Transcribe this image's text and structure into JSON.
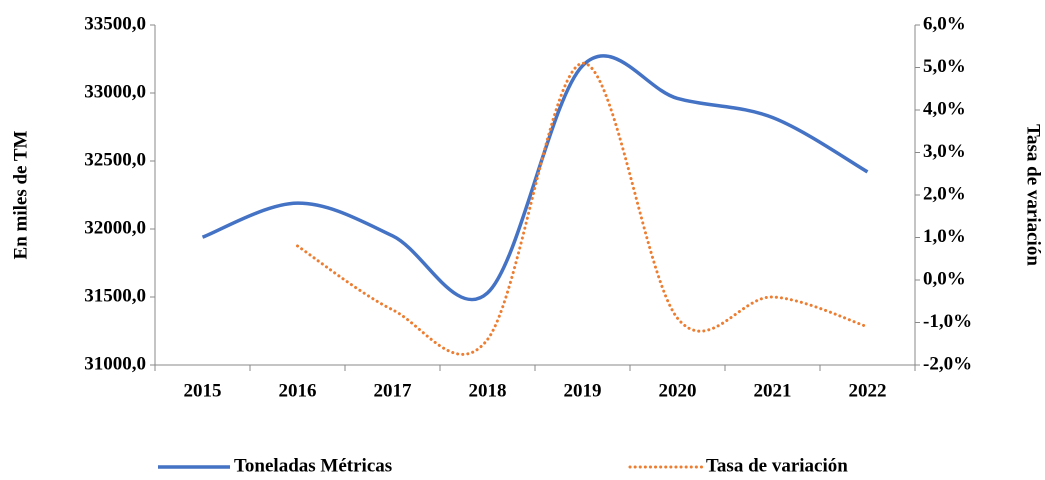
{
  "chart_data": {
    "type": "line",
    "categories": [
      "2015",
      "2016",
      "2017",
      "2018",
      "2019",
      "2020",
      "2021",
      "2022"
    ],
    "ylabel": "En miles de TM",
    "y2label": "Tasa de variación",
    "ylim": [
      31000,
      33500
    ],
    "yticks": [
      {
        "value": 31000,
        "label": "31000,0"
      },
      {
        "value": 31500,
        "label": "31500,0"
      },
      {
        "value": 32000,
        "label": "32000,0"
      },
      {
        "value": 32500,
        "label": "32500,0"
      },
      {
        "value": 33000,
        "label": "33000,0"
      },
      {
        "value": 33500,
        "label": "33500,0"
      }
    ],
    "y2lim": [
      -2,
      6
    ],
    "y2ticks": [
      {
        "value": -2,
        "label": "-2,0%"
      },
      {
        "value": -1,
        "label": "-1,0%"
      },
      {
        "value": 0,
        "label": "0,0%"
      },
      {
        "value": 1,
        "label": "1,0%"
      },
      {
        "value": 2,
        "label": "2,0%"
      },
      {
        "value": 3,
        "label": "3,0%"
      },
      {
        "value": 4,
        "label": "4,0%"
      },
      {
        "value": 5,
        "label": "5,0%"
      },
      {
        "value": 6,
        "label": "6,0%"
      }
    ],
    "legend": "bottom",
    "series": [
      {
        "name": "Toneladas Métricas",
        "color": "#4472c4",
        "dash": "solid",
        "values": [
          31940,
          32190,
          31950,
          31530,
          33200,
          32960,
          32820,
          32420
        ]
      },
      {
        "name": "Tasa de variación",
        "color": "#ed7d31",
        "dash": "dotted",
        "axis": "y2",
        "values": [
          null,
          0.8,
          -0.7,
          -1.4,
          5.1,
          -0.9,
          -0.4,
          -1.1
        ]
      }
    ]
  }
}
